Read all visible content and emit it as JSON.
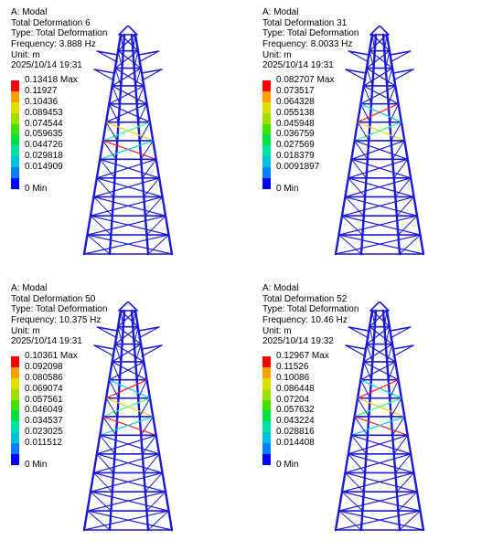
{
  "colors": {
    "mesh": "#1a1ad6",
    "scale": [
      "#0000ff",
      "#0080ff",
      "#00c0e0",
      "#00e0a0",
      "#00e040",
      "#40e000",
      "#a0e000",
      "#e0e000",
      "#ffa000",
      "#ff0000"
    ],
    "highlight": [
      "#00d0ff",
      "#ffd000",
      "#ff2020",
      "#30ff80"
    ]
  },
  "panels": [
    {
      "system": "A: Modal",
      "result": "Total Deformation 6",
      "type": "Type: Total Deformation",
      "frequency": "Frequency: 3.888 Hz",
      "unit": "Unit: m",
      "timestamp": "2025/10/14 19:31",
      "legend": {
        "max_label": "0.13418 Max",
        "levels": [
          "0.11927",
          "0.10436",
          "0.089453",
          "0.074544",
          "0.059635",
          "0.044726",
          "0.029818",
          "0.014909"
        ],
        "min_label": "0 Min"
      },
      "hot_band": [
        0.38,
        0.55
      ]
    },
    {
      "system": "A: Modal",
      "result": "Total Deformation 31",
      "type": "Type: Total Deformation",
      "frequency": "Frequency: 8.0033 Hz",
      "unit": "Unit: m",
      "timestamp": "2025/10/14 19:31",
      "legend": {
        "max_label": "0.082707 Max",
        "levels": [
          "0.073517",
          "0.064328",
          "0.055138",
          "0.045948",
          "0.036759",
          "0.027569",
          "0.018379",
          "0.0091897"
        ],
        "min_label": "0 Min"
      },
      "hot_band": [
        0.25,
        0.45
      ]
    },
    {
      "system": "A: Modal",
      "result": "Total Deformation 50",
      "type": "Type: Total Deformation",
      "frequency": "Frequency: 10.375 Hz",
      "unit": "Unit: m",
      "timestamp": "2025/10/14 19:31",
      "legend": {
        "max_label": "0.10361 Max",
        "levels": [
          "0.092098",
          "0.080586",
          "0.069074",
          "0.057561",
          "0.046049",
          "0.034537",
          "0.023025",
          "0.011512"
        ],
        "min_label": "0 Min"
      },
      "hot_band": [
        0.3,
        0.5
      ]
    },
    {
      "system": "A: Modal",
      "result": "Total Deformation 52",
      "type": "Type: Total Deformation",
      "frequency": "Frequency: 10.46 Hz",
      "unit": "Unit: m",
      "timestamp": "2025/10/14 19:32",
      "legend": {
        "max_label": "0.12967 Max",
        "levels": [
          "0.11526",
          "0.10086",
          "0.086448",
          "0.07204",
          "0.057632",
          "0.043224",
          "0.028816",
          "0.014408"
        ],
        "min_label": "0 Min"
      },
      "hot_band": [
        0.3,
        0.55
      ]
    }
  ]
}
